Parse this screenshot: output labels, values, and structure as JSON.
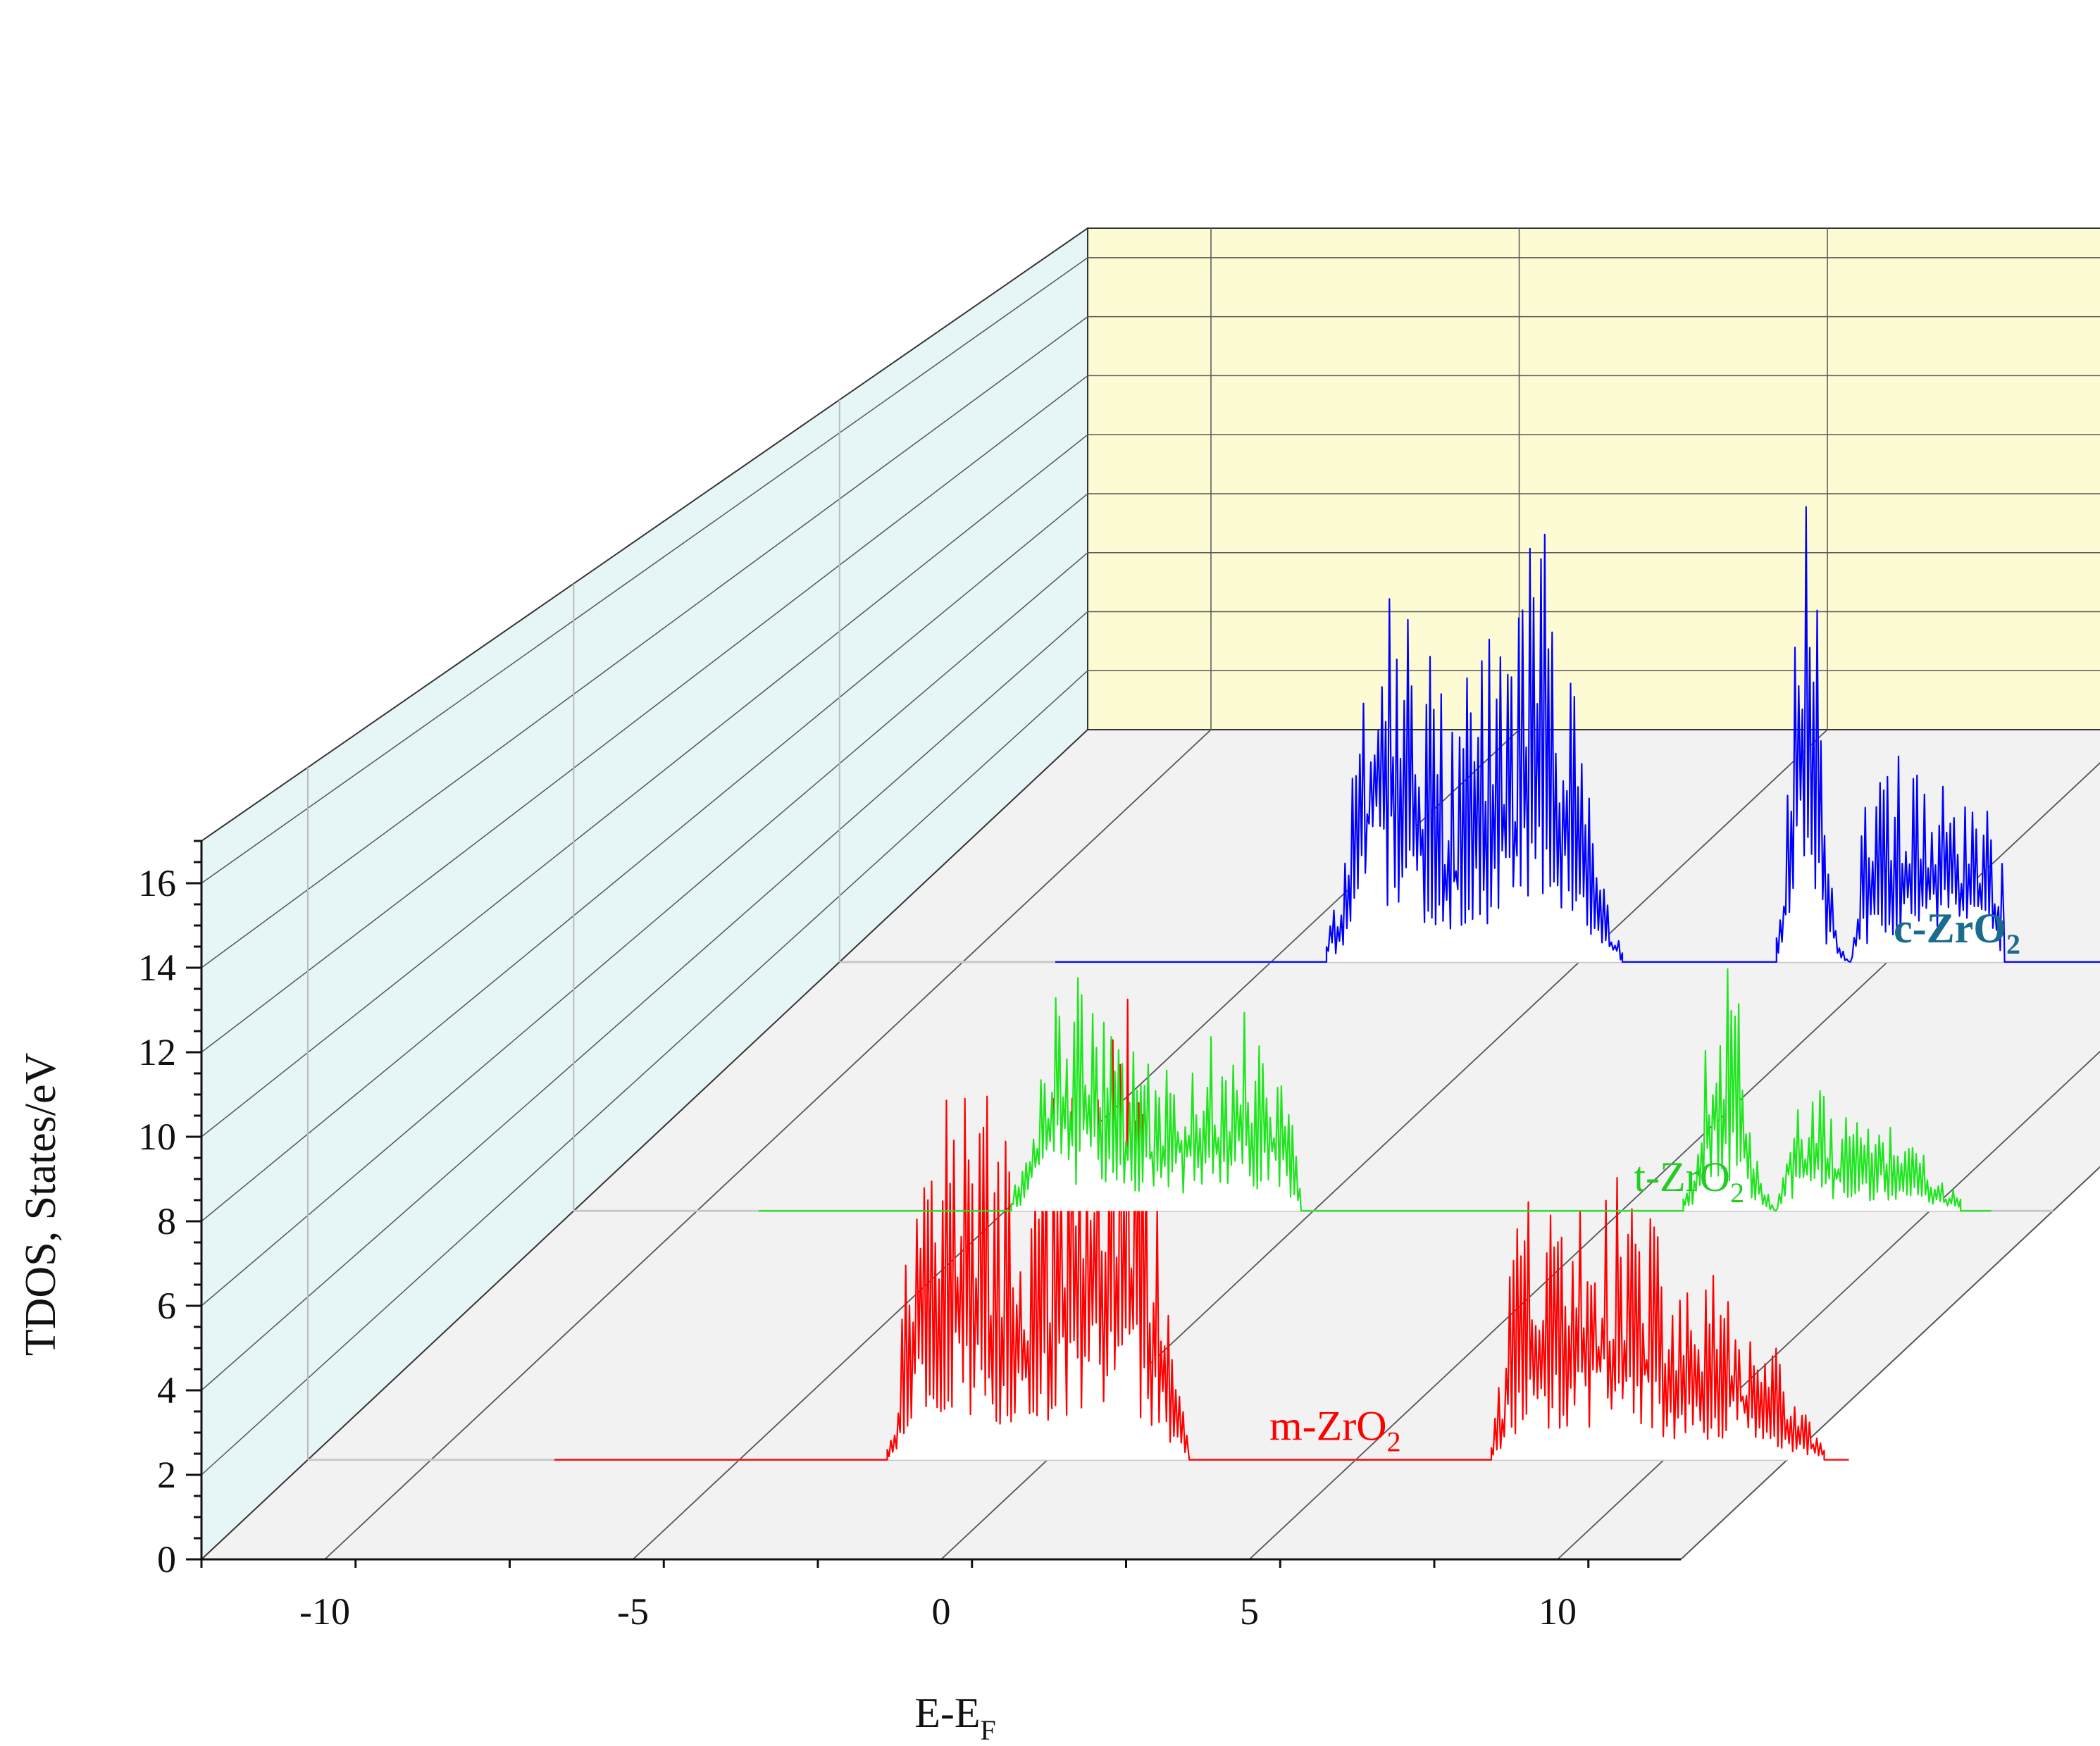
{
  "chart_data": {
    "type": "line",
    "style": "3d-waterfall",
    "xlabel_main": "E-E",
    "xlabel_sub": "F",
    "ylabel": "TDOS, States/eV",
    "xlim": [
      -12,
      12
    ],
    "ylim": [
      0,
      17
    ],
    "x_ticks": [
      -10,
      -5,
      0,
      5,
      10
    ],
    "y_ticks": [
      0,
      2,
      4,
      6,
      8,
      10,
      12,
      14,
      16
    ],
    "x_tick_labels": [
      "-10",
      "-5",
      "0",
      "5",
      "10"
    ],
    "y_tick_labels": [
      "0",
      "2",
      "4",
      "6",
      "8",
      "10",
      "12",
      "14",
      "16"
    ],
    "grid": true,
    "colors": {
      "side_wall": "#e6f6f6",
      "back_wall": "#fdfbd3",
      "floor": "#f2f2f2",
      "grid": "#555555"
    },
    "series": [
      {
        "name": "m-ZrO",
        "name_sub": "2",
        "color": "#ff0000",
        "label_color": "#ff0000",
        "label_bold": false,
        "label_x": 3.6,
        "x_range": [
          -8.0,
          13.0
        ],
        "bands": [
          {
            "x": [
              -2.6,
              -2.5,
              -2.4,
              -2.3,
              -2.2,
              -2.1,
              -2.0,
              -1.8,
              -1.6,
              -1.4,
              -1.2,
              -1.0,
              -0.8,
              -0.6,
              -0.4,
              -0.2,
              0.0,
              0.2,
              0.4,
              0.6,
              0.8,
              1.0,
              1.2,
              1.4,
              1.6,
              1.7,
              1.8,
              1.9,
              2.0,
              2.1,
              2.2,
              2.3
            ],
            "y": [
              0.3,
              0.8,
              1.8,
              3.6,
              4.5,
              5.6,
              6.1,
              8.0,
              6.3,
              6.6,
              5.9,
              6.3,
              5.1,
              5.5,
              4.2,
              5.0,
              5.5,
              6.5,
              5.9,
              5.9,
              7.1,
              7.0,
              8.0,
              7.2,
              5.4,
              4.2,
              5.2,
              3.6,
              2.5,
              1.2,
              0.8,
              0.3
            ]
          },
          {
            "x": [
              7.2,
              7.3,
              7.4,
              7.5,
              7.6,
              7.8,
              8.0,
              8.2,
              8.4,
              8.6,
              8.8,
              9.0,
              9.2,
              9.4,
              9.6,
              9.8,
              10.0,
              10.2,
              10.4,
              10.6,
              10.8,
              11.0,
              11.2,
              11.4,
              11.6,
              11.8,
              12.0,
              12.2,
              12.4,
              12.6
            ],
            "y": [
              0.3,
              1.1,
              1.8,
              3.0,
              3.9,
              4.5,
              3.6,
              4.5,
              4.1,
              4.2,
              4.1,
              4.8,
              5.1,
              4.4,
              4.3,
              4.0,
              3.4,
              2.9,
              3.2,
              2.7,
              3.1,
              2.5,
              3.0,
              2.2,
              1.6,
              1.9,
              1.3,
              1.0,
              0.6,
              0.2
            ]
          }
        ]
      },
      {
        "name": "t-ZrO",
        "name_sub": "2",
        "color": "#1ee51e",
        "label_color": "#22cc22",
        "label_bold": false,
        "label_x": 5.2,
        "x_range": [
          -9.0,
          11.0
        ],
        "bands": [
          {
            "x": [
              -4.9,
              -4.8,
              -4.7,
              -4.6,
              -4.5,
              -4.4,
              -4.2,
              -4.0,
              -3.8,
              -3.6,
              -3.4,
              -3.2,
              -3.0,
              -2.8,
              -2.6,
              -2.4,
              -2.2,
              -2.0,
              -1.8,
              -1.6,
              -1.4,
              -1.2,
              -1.0,
              -0.8,
              -0.6,
              -0.4,
              -0.3,
              -0.2
            ],
            "y": [
              0.2,
              0.6,
              0.9,
              1.5,
              2.3,
              2.9,
              4.0,
              4.3,
              4.0,
              3.8,
              3.1,
              3.4,
              2.6,
              2.7,
              2.4,
              2.4,
              2.9,
              2.8,
              2.5,
              3.1,
              3.2,
              3.6,
              3.3,
              2.9,
              3.1,
              2.4,
              1.2,
              0.2
            ]
          },
          {
            "x": [
              6.0,
              6.1,
              6.2,
              6.3,
              6.4,
              6.6,
              6.8,
              7.0,
              7.2,
              7.4,
              7.5,
              7.6,
              7.7,
              7.8,
              7.9,
              8.0,
              8.2,
              8.4,
              8.6,
              8.8,
              9.0,
              9.2,
              9.4,
              9.6,
              9.8,
              10.0,
              10.2,
              10.4,
              10.5
            ],
            "y": [
              0.2,
              0.6,
              1.4,
              2.6,
              3.6,
              4.3,
              4.3,
              2.5,
              1.1,
              0.2,
              0.0,
              0.9,
              1.8,
              1.7,
              1.8,
              2.3,
              2.2,
              1.7,
              1.8,
              1.5,
              1.5,
              1.8,
              1.4,
              1.2,
              1.3,
              0.9,
              0.5,
              0.4,
              0.2
            ]
          }
        ]
      },
      {
        "name": "c-ZrO",
        "name_sub": "2",
        "color": "#0000ff",
        "label_color": "#1b6b8c",
        "label_bold": true,
        "label_x": 5.1,
        "x_range": [
          -8.5,
          12.5
        ],
        "bands": [
          {
            "x": [
              -4.1,
              -4.0,
              -3.9,
              -3.8,
              -3.7,
              -3.6,
              -3.5,
              -3.4,
              -3.2,
              -3.0,
              -2.8,
              -2.6,
              -2.4,
              -2.2,
              -2.0,
              -1.8,
              -1.6,
              -1.4,
              -1.2,
              -1.0,
              -0.8,
              -0.6,
              -0.4,
              -0.2,
              0.0,
              0.2,
              0.4,
              0.5,
              0.6,
              0.7
            ],
            "y": [
              0.4,
              1.0,
              1.4,
              2.0,
              2.8,
              4.0,
              5.5,
              6.7,
              8.0,
              7.3,
              6.0,
              5.8,
              5.2,
              4.2,
              3.9,
              4.8,
              5.0,
              5.5,
              6.0,
              5.6,
              7.3,
              7.8,
              6.5,
              5.6,
              3.7,
              2.7,
              1.5,
              0.8,
              0.6,
              0.2
            ]
          },
          {
            "x": [
              3.2,
              3.3,
              3.4,
              3.5,
              3.6,
              3.7,
              3.8,
              3.9,
              4.0,
              4.1,
              4.2,
              4.3,
              4.4,
              4.5,
              4.6,
              4.8,
              5.0,
              5.2,
              5.4,
              5.6,
              5.8,
              6.0,
              6.2,
              6.4,
              6.6,
              6.8,
              6.9
            ],
            "y": [
              0.4,
              1.6,
              3.2,
              6.0,
              8.5,
              8.8,
              6.5,
              5.5,
              3.0,
              1.6,
              0.6,
              0.1,
              0.0,
              1.0,
              2.5,
              3.0,
              3.3,
              3.6,
              3.4,
              3.3,
              3.2,
              3.6,
              2.4,
              3.0,
              2.7,
              1.5,
              2.0
            ]
          }
        ]
      }
    ]
  }
}
